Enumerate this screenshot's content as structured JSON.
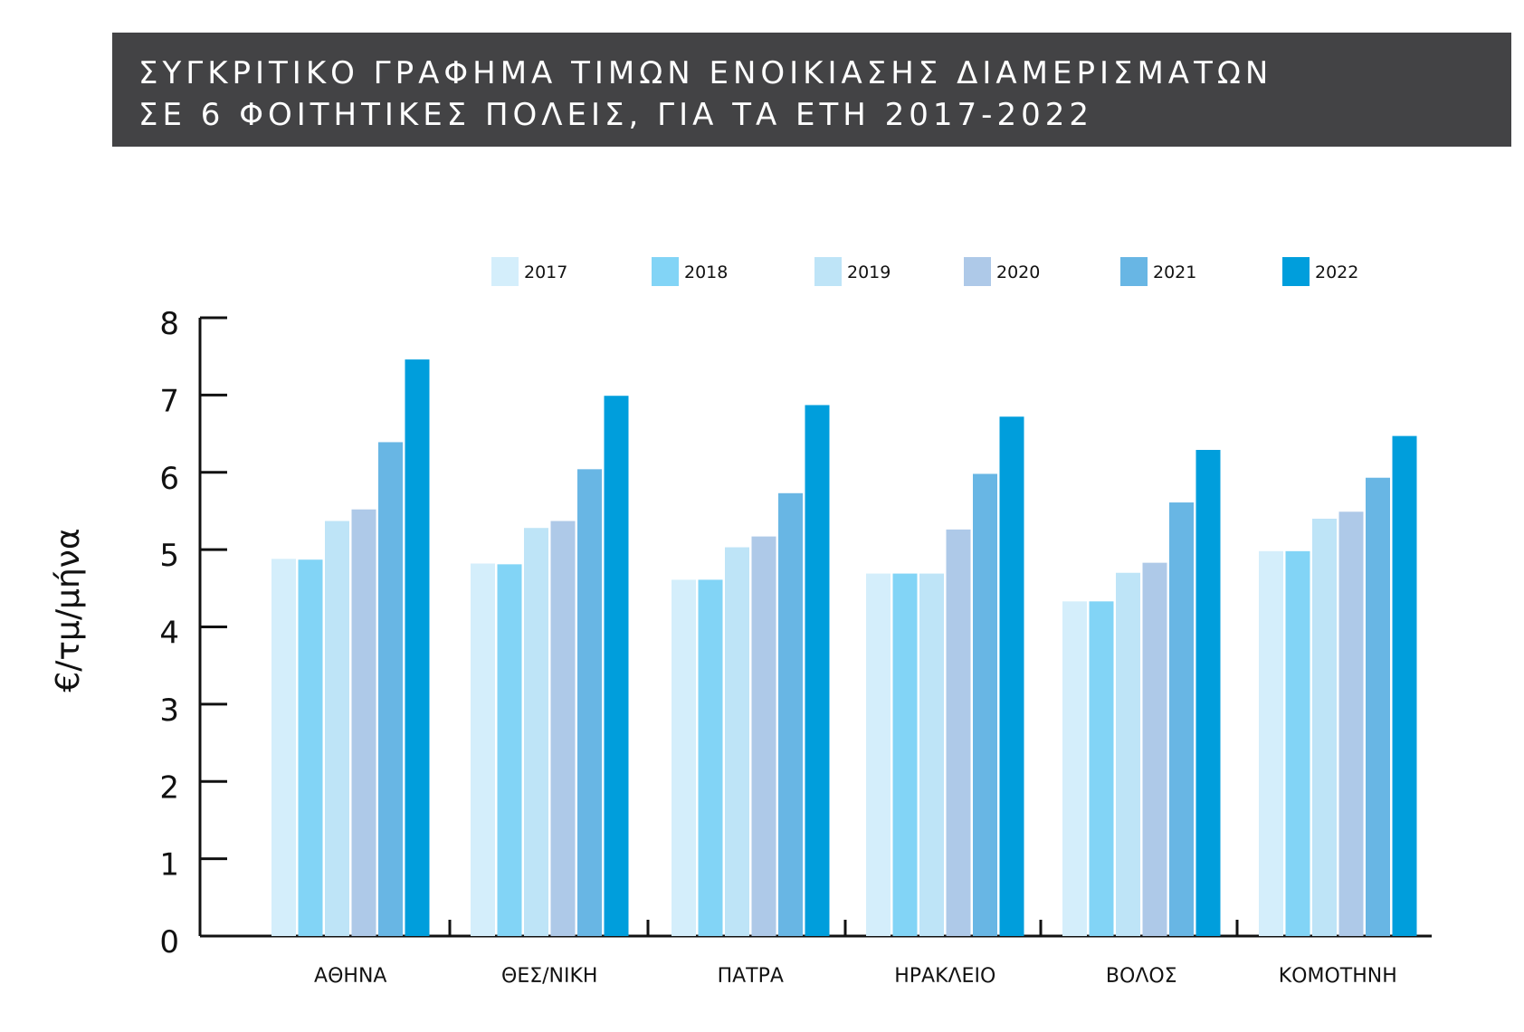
{
  "title": {
    "line1": "ΣΥΓΚΡΙΤΙΚΟ ΓΡΑΦΗΜΑ ΤΙΜΩΝ ΕΝΟΙΚΙΑΣΗΣ ΔΙΑΜΕΡΙΣΜΑΤΩΝ",
    "line2": "ΣΕ 6 ΦΟΙΤΗΤΙΚΕΣ ΠΟΛΕΙΣ, ΓΙΑ ΤΑ ΕΤΗ 2017-2022"
  },
  "chart_data": {
    "type": "bar",
    "title": "ΣΥΓΚΡΙΤΙΚΟ ΓΡΑΦΗΜΑ ΤΙΜΩΝ ΕΝΟΙΚΙΑΣΗΣ ΔΙΑΜΕΡΙΣΜΑΤΩΝ ΣΕ 6 ΦΟΙΤΗΤΙΚΕΣ ΠΟΛΕΙΣ, ΓΙΑ ΤΑ ΕΤΗ 2017-2022",
    "xlabel": "",
    "ylabel": "€/τμ/μήνα",
    "ylim": [
      0,
      8
    ],
    "yticks": [
      "0",
      "1",
      "2",
      "3",
      "4",
      "5",
      "6",
      "7",
      "8"
    ],
    "grid": false,
    "legend_position": "top",
    "categories": [
      "ΑΘΗΝΑ",
      "ΘΕΣ/ΝΙΚΗ",
      "ΠΑΤΡΑ",
      "ΗΡΑΚΛΕΙΟ",
      "ΒΟΛΟΣ",
      "ΚΟΜΟΤΗΝΗ"
    ],
    "series": [
      {
        "name": "2017",
        "color": "#d4eefb",
        "values": [
          4.88,
          4.82,
          4.61,
          4.69,
          4.33,
          4.98
        ]
      },
      {
        "name": "2018",
        "color": "#82d4f6",
        "values": [
          4.87,
          4.81,
          4.61,
          4.69,
          4.33,
          4.98
        ]
      },
      {
        "name": "2019",
        "color": "#bee4f7",
        "values": [
          5.37,
          5.28,
          5.03,
          4.69,
          4.7,
          5.4
        ]
      },
      {
        "name": "2020",
        "color": "#aec9e8",
        "values": [
          5.52,
          5.37,
          5.17,
          5.26,
          4.83,
          5.49
        ]
      },
      {
        "name": "2021",
        "color": "#68b6e4",
        "values": [
          6.39,
          6.04,
          5.73,
          5.98,
          5.61,
          5.93
        ]
      },
      {
        "name": "2022",
        "color": "#009edc",
        "values": [
          7.46,
          6.99,
          6.87,
          6.72,
          6.29,
          6.47
        ]
      }
    ]
  }
}
